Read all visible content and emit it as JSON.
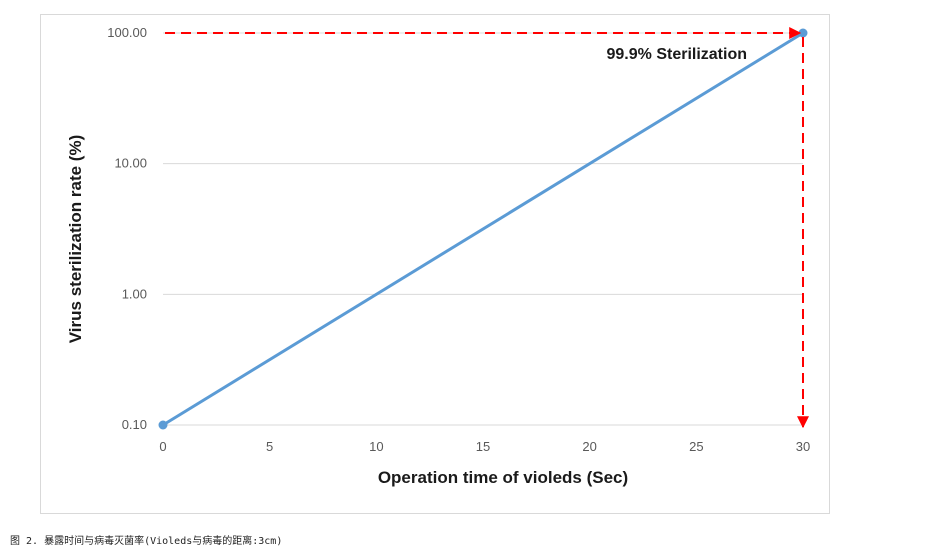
{
  "chart_data": {
    "type": "line",
    "xlabel": "Operation time of violeds (Sec)",
    "ylabel": "Virus sterilization rate (%)",
    "x_ticks": [
      "0",
      "5",
      "10",
      "15",
      "20",
      "25",
      "30"
    ],
    "y_ticks": [
      "0.10",
      "1.00",
      "10.00",
      "100.00"
    ],
    "xlim": [
      0,
      30
    ],
    "ylim": [
      0.1,
      100
    ],
    "y_scale": "log",
    "grid": "horizontal",
    "series": [
      {
        "x": [
          0,
          30
        ],
        "y": [
          0.1,
          100
        ],
        "color": "#5b9bd5"
      }
    ],
    "annotation": {
      "text": "99.9% Sterilization",
      "x": 30,
      "y": 100,
      "color": "#ff0000",
      "style": "dashed arrows"
    }
  },
  "caption": "图 2. 暴露时间与病毒灭菌率(Violeds与病毒的距离:3cm)"
}
